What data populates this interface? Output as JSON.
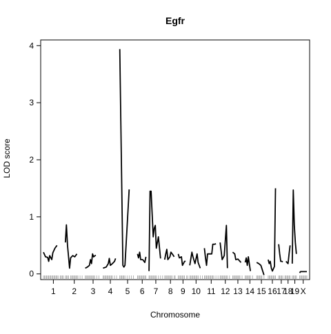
{
  "chart_data": {
    "type": "line",
    "title": "Egfr",
    "xlabel": "Chromosome",
    "ylabel": "LOD score",
    "ylim": [
      -0.1,
      4.1
    ],
    "yticks": [
      0,
      1,
      2,
      3,
      4
    ],
    "grid": false,
    "legend": "none",
    "line_color": "#000000",
    "chromosomes": [
      {
        "label": "1",
        "range": [
          0,
          19
        ],
        "lod": [
          [
            0,
            0.38
          ],
          [
            2,
            0.3
          ],
          [
            4,
            0.29
          ],
          [
            5,
            0.22
          ],
          [
            6,
            0.32
          ],
          [
            8,
            0.25
          ],
          [
            9,
            0.37
          ],
          [
            11,
            0.45
          ],
          [
            13,
            0.5
          ]
        ]
      },
      {
        "label": "2",
        "range": [
          21,
          38
        ],
        "lod": [
          [
            21,
            0.55
          ],
          [
            22,
            0.86
          ],
          [
            23,
            0.5
          ],
          [
            25,
            0.1
          ],
          [
            26,
            0.28
          ],
          [
            28,
            0.32
          ],
          [
            30,
            0.3
          ],
          [
            32,
            0.35
          ]
        ]
      },
      {
        "label": "3",
        "range": [
          40,
          55
        ],
        "lod": [
          [
            40,
            0.1
          ],
          [
            42,
            0.12
          ],
          [
            44,
            0.15
          ],
          [
            45,
            0.25
          ],
          [
            46,
            0.18
          ],
          [
            47,
            0.35
          ],
          [
            48,
            0.3
          ],
          [
            50,
            0.33
          ]
        ]
      },
      {
        "label": "4",
        "range": [
          57,
          71
        ],
        "lod": [
          [
            57,
            0.1
          ],
          [
            60,
            0.12
          ],
          [
            62,
            0.18
          ],
          [
            63,
            0.27
          ],
          [
            64,
            0.15
          ],
          [
            66,
            0.18
          ],
          [
            68,
            0.22
          ],
          [
            69,
            0.27
          ]
        ]
      },
      {
        "label": "5",
        "range": [
          73,
          88
        ],
        "lod": [
          [
            73,
            3.94
          ],
          [
            76,
            0.15
          ],
          [
            77,
            0.12
          ],
          [
            78,
            0.15
          ],
          [
            82,
            1.48
          ]
        ]
      },
      {
        "label": "6",
        "range": [
          90,
          99
        ],
        "lod": [
          [
            90,
            0.35
          ],
          [
            91,
            0.28
          ],
          [
            92,
            0.38
          ],
          [
            93,
            0.25
          ],
          [
            95,
            0.25
          ],
          [
            97,
            0.2
          ],
          [
            98,
            0.3
          ]
        ]
      },
      {
        "label": "7",
        "range": [
          101,
          114
        ],
        "lod": [
          [
            101,
            0.05
          ],
          [
            102,
            1.45
          ],
          [
            103,
            1.45
          ],
          [
            105,
            0.65
          ],
          [
            106,
            0.8
          ],
          [
            107,
            0.85
          ],
          [
            108,
            0.45
          ],
          [
            110,
            0.65
          ],
          [
            112,
            0.27
          ]
        ]
      },
      {
        "label": "8",
        "range": [
          116,
          127
        ],
        "lod": [
          [
            116,
            0.25
          ],
          [
            117,
            0.35
          ],
          [
            118,
            0.43
          ],
          [
            119,
            0.25
          ],
          [
            121,
            0.3
          ],
          [
            122,
            0.38
          ],
          [
            124,
            0.33
          ],
          [
            125,
            0.3
          ]
        ]
      },
      {
        "label": "9",
        "range": [
          129,
          138
        ],
        "lod": [
          [
            129,
            0.35
          ],
          [
            130,
            0.28
          ],
          [
            132,
            0.3
          ],
          [
            133,
            0.15
          ],
          [
            135,
            0.22
          ],
          [
            136,
            0.22
          ]
        ]
      },
      {
        "label": "10",
        "range": [
          140,
          152
        ],
        "lod": [
          [
            140,
            0.15
          ],
          [
            142,
            0.38
          ],
          [
            143,
            0.3
          ],
          [
            145,
            0.18
          ],
          [
            147,
            0.35
          ],
          [
            148,
            0.2
          ],
          [
            150,
            0.1
          ]
        ]
      },
      {
        "label": "11",
        "range": [
          154,
          167
        ],
        "lod": [
          [
            154,
            0.45
          ],
          [
            155,
            0.28
          ],
          [
            156,
            0.15
          ],
          [
            157,
            0.35
          ],
          [
            159,
            0.35
          ],
          [
            161,
            0.35
          ],
          [
            162,
            0.52
          ],
          [
            164,
            0.52
          ],
          [
            165,
            0.53
          ]
        ]
      },
      {
        "label": "12",
        "range": [
          169,
          179
        ],
        "lod": [
          [
            169,
            0.55
          ],
          [
            171,
            0.25
          ],
          [
            173,
            0.32
          ],
          [
            175,
            0.85
          ],
          [
            176,
            0.1
          ]
        ]
      },
      {
        "label": "13",
        "range": [
          181,
          191
        ],
        "lod": [
          [
            181,
            0.38
          ],
          [
            183,
            0.35
          ],
          [
            184,
            0.25
          ],
          [
            186,
            0.26
          ],
          [
            188,
            0.22
          ],
          [
            189,
            0.2
          ]
        ]
      },
      {
        "label": "14",
        "range": [
          193,
          202
        ],
        "lod": [
          [
            193,
            0.2
          ],
          [
            194,
            0.28
          ],
          [
            195,
            0.15
          ],
          [
            196,
            0.3
          ],
          [
            198,
            0.05
          ]
        ]
      },
      {
        "label": "15",
        "range": [
          204,
          213
        ],
        "lod": [
          [
            204,
            0.2
          ],
          [
            206,
            0.18
          ],
          [
            208,
            0.15
          ],
          [
            211,
            -0.02
          ]
        ]
      },
      {
        "label": "16",
        "range": [
          215,
          223
        ],
        "lod": [
          [
            215,
            0.25
          ],
          [
            216,
            0.18
          ],
          [
            217,
            0.22
          ],
          [
            218,
            0.1
          ],
          [
            219,
            0.05
          ],
          [
            221,
            0.13
          ],
          [
            222,
            1.5
          ]
        ]
      },
      {
        "label": "17",
        "range": [
          225,
          230
        ],
        "lod": [
          [
            225,
            0.52
          ],
          [
            226,
            0.35
          ],
          [
            227,
            0.22
          ],
          [
            228,
            0.22
          ],
          [
            229,
            0.21
          ]
        ]
      },
      {
        "label": "18",
        "range": [
          231,
          237
        ],
        "lod": [
          [
            232,
            0.22
          ],
          [
            233,
            0.2
          ],
          [
            234,
            0.18
          ],
          [
            235,
            0.35
          ],
          [
            236,
            0.5
          ]
        ]
      },
      {
        "label": "19",
        "range": [
          238,
          243
        ],
        "lod": [
          [
            238,
            0.18
          ],
          [
            239,
            1.47
          ],
          [
            240,
            0.85
          ],
          [
            241,
            0.55
          ],
          [
            242,
            0.35
          ]
        ]
      },
      {
        "label": "X",
        "range": [
          245,
          252
        ],
        "lod": [
          [
            245,
            0.02
          ],
          [
            246,
            0.04
          ],
          [
            248,
            0.04
          ],
          [
            250,
            0.04
          ],
          [
            252,
            0.04
          ]
        ]
      }
    ],
    "marker_positions": [
      0,
      1,
      2,
      3,
      4,
      5,
      6,
      7,
      8,
      9,
      10,
      11,
      12,
      13,
      14,
      16,
      17,
      18,
      19,
      21,
      22,
      23,
      24,
      26,
      27,
      28,
      29,
      30,
      31,
      32,
      33,
      35,
      37,
      40,
      41,
      42,
      43,
      44,
      45,
      46,
      47,
      48,
      49,
      51,
      53,
      57,
      58,
      59,
      60,
      61,
      62,
      63,
      64,
      65,
      66,
      68,
      70,
      73,
      74,
      75,
      76,
      77,
      78,
      80,
      82,
      84,
      86,
      90,
      91,
      92,
      93,
      94,
      95,
      96,
      97,
      98,
      101,
      102,
      103,
      104,
      105,
      106,
      107,
      108,
      110,
      112,
      114,
      116,
      117,
      118,
      119,
      120,
      121,
      122,
      123,
      125,
      126,
      129,
      130,
      131,
      132,
      133,
      134,
      135,
      137,
      138,
      140,
      141,
      142,
      143,
      144,
      145,
      146,
      147,
      148,
      150,
      152,
      154,
      155,
      156,
      157,
      158,
      159,
      160,
      161,
      162,
      163,
      165,
      167,
      169,
      170,
      171,
      172,
      173,
      174,
      175,
      176,
      178,
      181,
      182,
      183,
      184,
      185,
      186,
      187,
      188,
      190,
      193,
      194,
      195,
      196,
      197,
      198,
      200,
      204,
      205,
      206,
      207,
      208,
      209,
      211,
      215,
      216,
      217,
      218,
      219,
      220,
      221,
      222,
      225,
      226,
      227,
      228,
      229,
      231,
      232,
      233,
      234,
      235,
      236,
      238,
      239,
      240,
      241,
      242,
      245,
      246,
      247,
      248,
      249,
      250,
      251,
      252
    ]
  }
}
